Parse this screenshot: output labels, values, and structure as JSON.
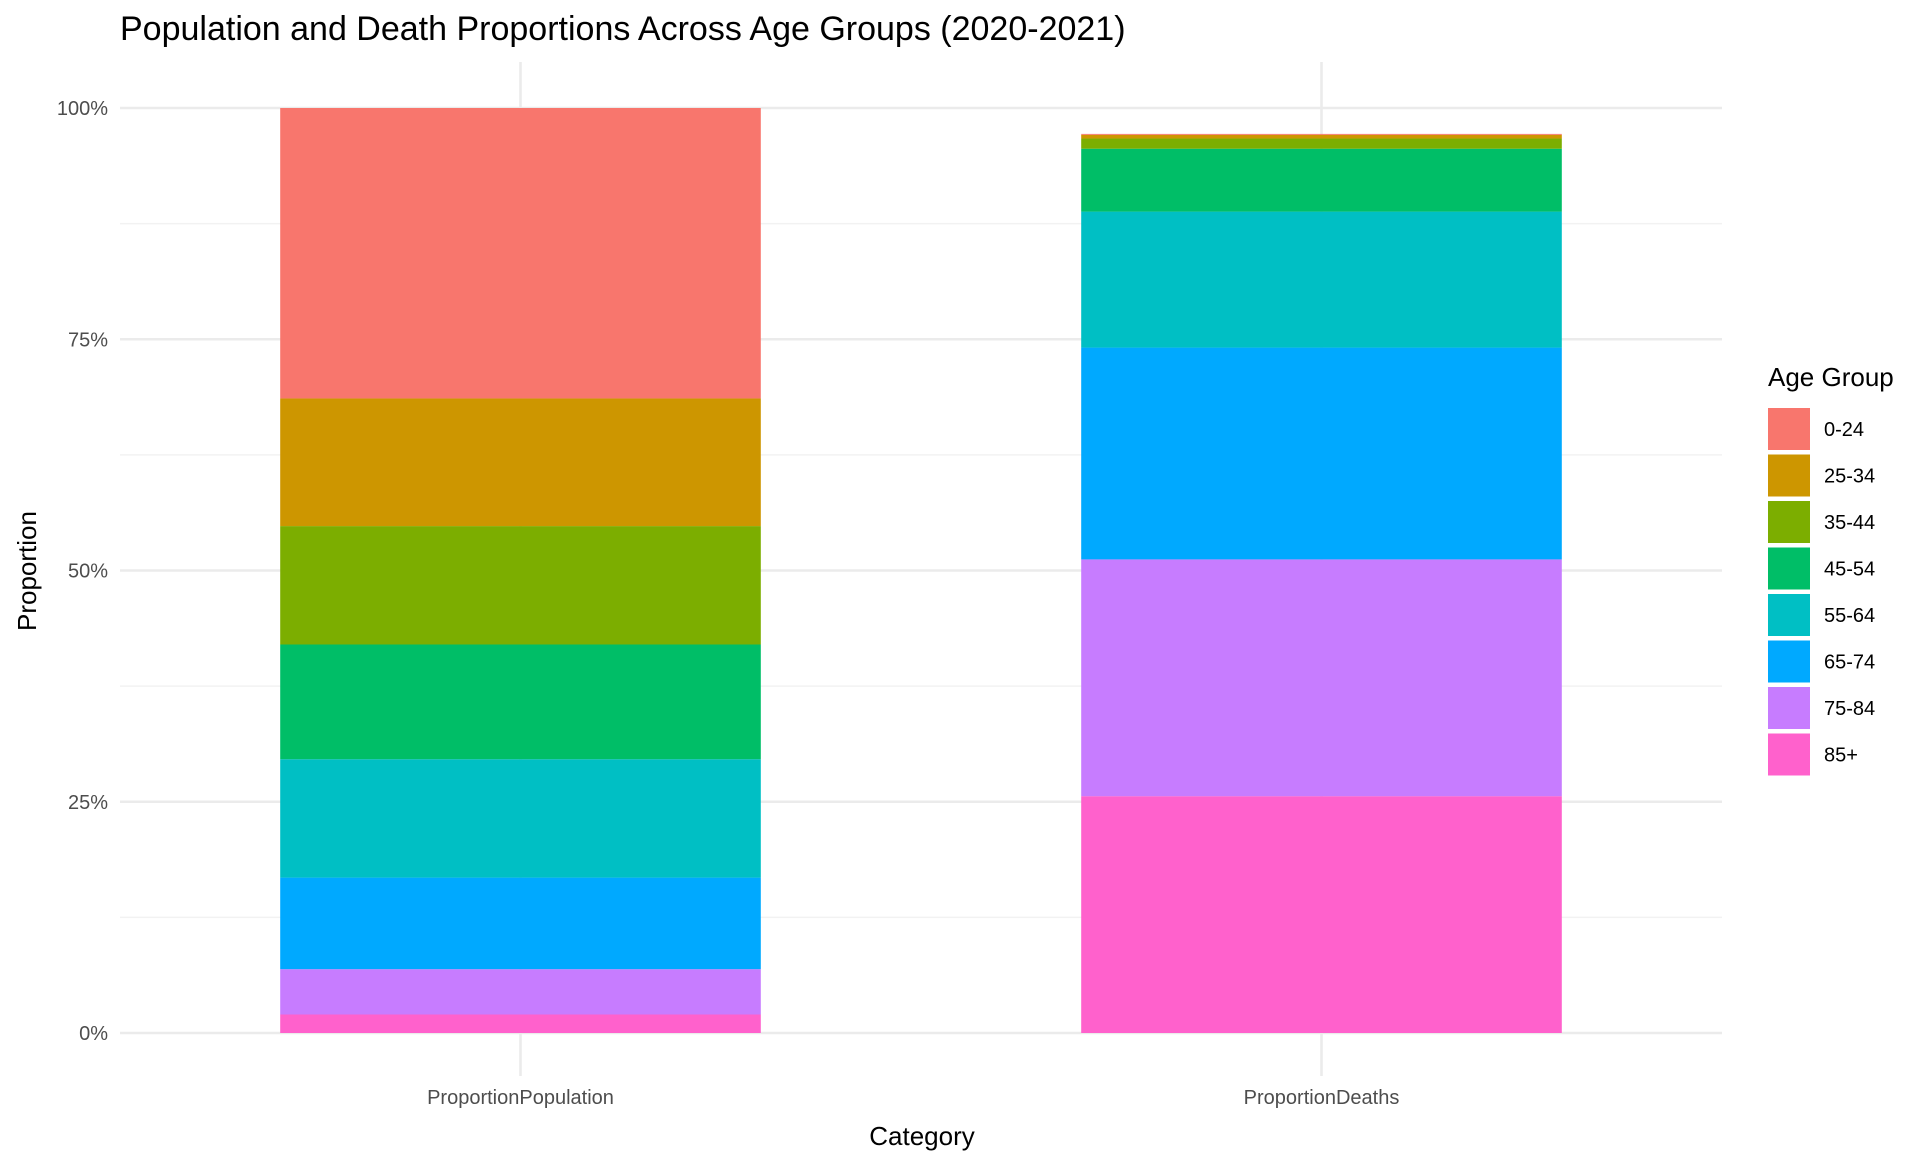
{
  "chart_data": {
    "type": "bar",
    "stacked": true,
    "title": "Population and Death Proportions Across Age Groups (2020-2021)",
    "xlabel": "Category",
    "ylabel": "Proportion",
    "ylim": [
      0,
      1
    ],
    "y_ticks": [
      {
        "value": 0,
        "label": "0%"
      },
      {
        "value": 0.25,
        "label": "25%"
      },
      {
        "value": 0.5,
        "label": "50%"
      },
      {
        "value": 0.75,
        "label": "75%"
      },
      {
        "value": 1,
        "label": "100%"
      }
    ],
    "categories": [
      "ProportionPopulation",
      "ProportionDeaths"
    ],
    "grid": true,
    "legend": {
      "title": "Age Group",
      "position": "right"
    },
    "series": [
      {
        "name": "0-24",
        "color": "#F8766D",
        "values": [
          0.314,
          0.001
        ]
      },
      {
        "name": "25-34",
        "color": "#CD9600",
        "values": [
          0.138,
          0.004
        ]
      },
      {
        "name": "35-44",
        "color": "#7CAE00",
        "values": [
          0.128,
          0.011
        ]
      },
      {
        "name": "45-54",
        "color": "#00BE67",
        "values": [
          0.124,
          0.068
        ]
      },
      {
        "name": "55-64",
        "color": "#00BFC4",
        "values": [
          0.128,
          0.147
        ]
      },
      {
        "name": "65-74",
        "color": "#00A9FF",
        "values": [
          0.099,
          0.229
        ]
      },
      {
        "name": "75-84",
        "color": "#C77CFF",
        "values": [
          0.049,
          0.256
        ]
      },
      {
        "name": "85+",
        "color": "#FF61CC",
        "values": [
          0.02,
          0.256
        ]
      }
    ]
  }
}
